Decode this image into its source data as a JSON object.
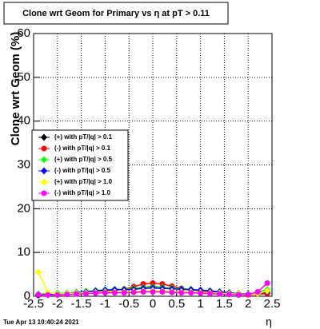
{
  "chart_data": {
    "type": "line",
    "title": "Clone wrt Geom for Primary vs   η at pT > 0.11",
    "y_label": "Clone wrt Geom (%)",
    "x_label": "η",
    "footer": "Tue Apr 13 10:40:24 2021",
    "xlim": [
      -2.5,
      2.5
    ],
    "ylim": [
      0,
      60
    ],
    "xticks": [
      -2.5,
      -2,
      -1.5,
      -1,
      -0.5,
      0,
      0.5,
      1,
      1.5,
      2,
      2.5
    ],
    "yticks": [
      0,
      10,
      20,
      30,
      40,
      50,
      60
    ],
    "grid": true,
    "legend": "left",
    "x": [
      -2.4,
      -2.2,
      -2.0,
      -1.8,
      -1.6,
      -1.4,
      -1.2,
      -1.0,
      -0.8,
      -0.6,
      -0.4,
      -0.2,
      0.0,
      0.2,
      0.4,
      0.6,
      0.8,
      1.0,
      1.2,
      1.4,
      1.6,
      1.8,
      2.0,
      2.2,
      2.4
    ],
    "series": [
      {
        "name": "(+) with pT/|q| > 0.1",
        "color": "#000000",
        "marker": "diamond",
        "values": [
          0.3,
          0.5,
          0.4,
          0.6,
          0.8,
          1.0,
          1.2,
          1.4,
          1.5,
          1.6,
          1.8,
          2.0,
          2.2,
          2.0,
          1.8,
          1.6,
          1.5,
          1.3,
          1.1,
          0.9,
          0.7,
          0.5,
          0.4,
          0.6,
          0.8
        ]
      },
      {
        "name": "(-) with pT/|q| > 0.1",
        "color": "#ff0000",
        "marker": "circle",
        "values": [
          0.2,
          0.4,
          0.3,
          0.5,
          0.7,
          0.9,
          1.1,
          1.3,
          1.4,
          1.6,
          2.2,
          2.8,
          3.0,
          2.8,
          2.3,
          1.8,
          1.5,
          1.2,
          1.0,
          0.8,
          0.6,
          0.4,
          0.3,
          0.5,
          0.6
        ]
      },
      {
        "name": "(+) with pT/|q| > 0.5",
        "color": "#00ff00",
        "marker": "diamond",
        "values": [
          0.5,
          0.6,
          0.7,
          0.7,
          0.9,
          1.1,
          1.3,
          1.5,
          1.6,
          1.6,
          1.8,
          2.0,
          2.1,
          2.0,
          1.9,
          1.7,
          1.6,
          1.4,
          1.2,
          1.0,
          0.8,
          0.6,
          0.5,
          0.9,
          1.5
        ]
      },
      {
        "name": "(-) with pT/|q| > 0.5",
        "color": "#0000ff",
        "marker": "diamond",
        "values": [
          0.3,
          0.4,
          0.4,
          0.6,
          0.8,
          1.0,
          1.2,
          1.4,
          1.5,
          1.5,
          1.6,
          1.8,
          1.9,
          1.8,
          1.7,
          1.6,
          1.5,
          1.4,
          1.2,
          1.0,
          0.8,
          0.6,
          0.5,
          0.8,
          1.0
        ]
      },
      {
        "name": "(+) with pT/|q| > 1.0",
        "color": "#ffff00",
        "marker": "diamond",
        "values": [
          5.5,
          0.8,
          0.5,
          0.6,
          0.7,
          0.8,
          0.9,
          1.0,
          1.0,
          1.0,
          1.1,
          1.2,
          1.3,
          1.2,
          1.1,
          1.0,
          1.0,
          0.9,
          0.8,
          0.7,
          0.6,
          0.5,
          0.4,
          0.6,
          1.2
        ]
      },
      {
        "name": "(-) with pT/|q| > 1.0",
        "color": "#ff00ff",
        "marker": "circle",
        "values": [
          0.4,
          0.3,
          0.3,
          0.4,
          0.5,
          0.6,
          0.7,
          0.8,
          0.8,
          0.8,
          0.9,
          1.0,
          1.0,
          1.0,
          0.9,
          0.8,
          0.8,
          0.7,
          0.6,
          0.5,
          0.4,
          0.3,
          0.4,
          1.0,
          3.0
        ]
      }
    ]
  }
}
